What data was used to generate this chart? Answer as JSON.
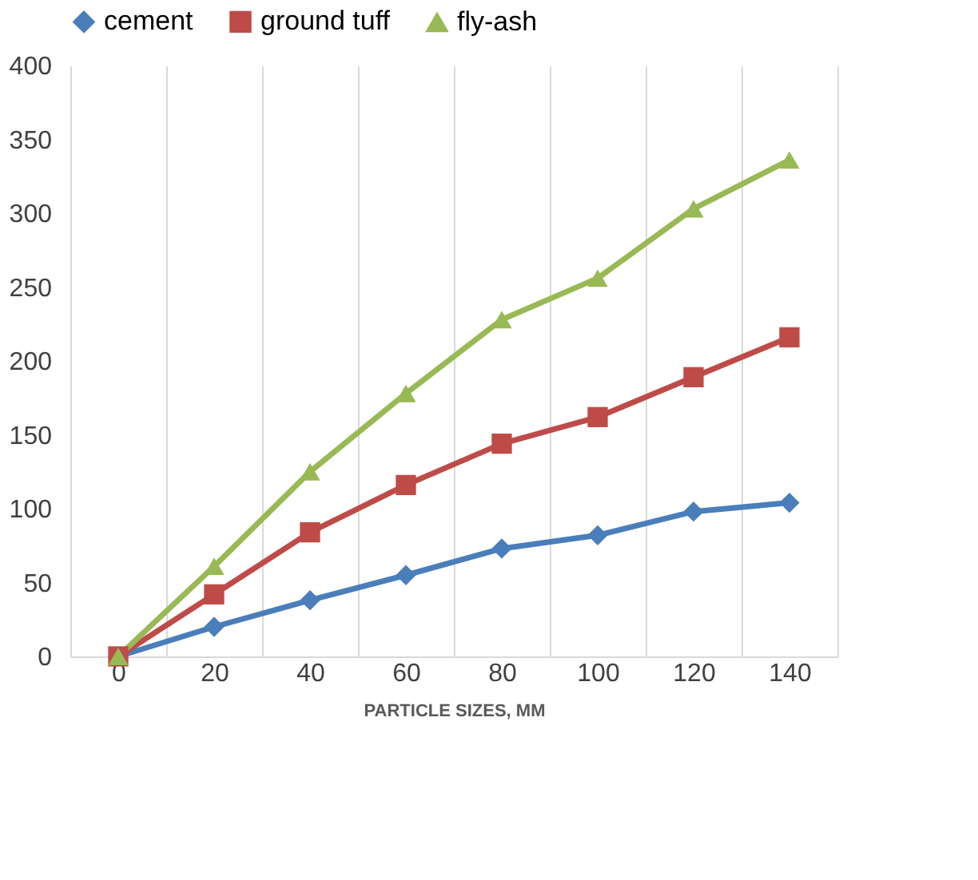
{
  "chart_data": {
    "type": "line",
    "xlabel": "PARTICLE SIZES, MM",
    "categories": [
      "0",
      "20",
      "40",
      "60",
      "80",
      "100",
      "120",
      "140"
    ],
    "series": [
      {
        "name": "cement",
        "color": "#4a7ebb",
        "marker": "diamond",
        "values": [
          0,
          20,
          38,
          55,
          73,
          82,
          98,
          104
        ]
      },
      {
        "name": "ground tuff",
        "color": "#be4b48",
        "marker": "square",
        "values": [
          0,
          42,
          84,
          116,
          144,
          162,
          189,
          216
        ]
      },
      {
        "name": "fly-ash",
        "color": "#98b954",
        "marker": "triangle",
        "values": [
          0,
          61,
          125,
          178,
          228,
          256,
          303,
          336
        ]
      }
    ],
    "ylim": [
      0,
      400
    ],
    "yticks": [
      0,
      50,
      100,
      150,
      200,
      250,
      300,
      350,
      400
    ],
    "grid": "x",
    "legend": "top",
    "line_style": "solid"
  }
}
